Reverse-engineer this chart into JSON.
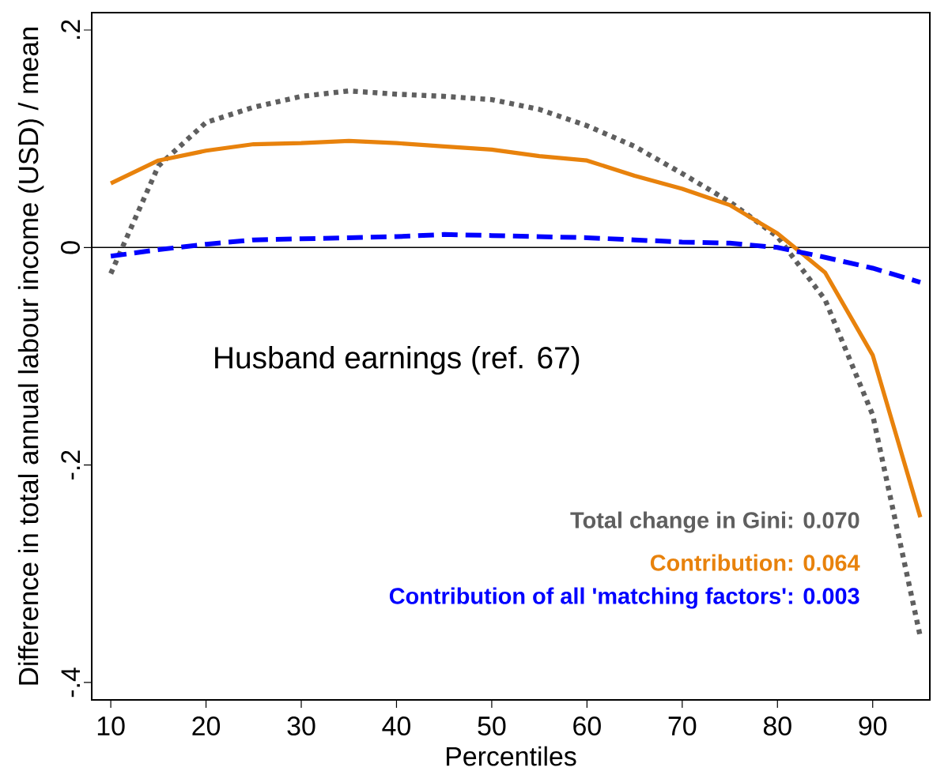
{
  "chart_data": {
    "type": "line",
    "xlabel": "Percentiles",
    "ylabel": "Difference in total annual labour income (USD) / mean",
    "x": [
      10,
      15,
      20,
      25,
      30,
      35,
      40,
      45,
      50,
      55,
      60,
      65,
      70,
      75,
      80,
      85,
      90,
      95
    ],
    "series": [
      {
        "name": "Total change in Gini:  0.070",
        "color": "#5f5f5f",
        "line_style": "dotted",
        "values": [
          -0.024,
          0.075,
          0.115,
          0.129,
          0.139,
          0.144,
          0.141,
          0.139,
          0.136,
          0.127,
          0.112,
          0.093,
          0.068,
          0.042,
          0.01,
          -0.048,
          -0.154,
          -0.358
        ]
      },
      {
        "name": "Contribution:  0.064",
        "color": "#e8820c",
        "line_style": "solid",
        "values": [
          0.059,
          0.08,
          0.089,
          0.095,
          0.096,
          0.098,
          0.096,
          0.093,
          0.09,
          0.084,
          0.08,
          0.066,
          0.054,
          0.039,
          0.013,
          -0.023,
          -0.099,
          -0.248
        ]
      },
      {
        "name": "Contribution of all 'matching factors':  0.003",
        "color": "#0000ff",
        "line_style": "dashed",
        "values": [
          -0.008,
          -0.002,
          0.003,
          0.007,
          0.008,
          0.009,
          0.01,
          0.012,
          0.011,
          0.01,
          0.009,
          0.007,
          0.005,
          0.004,
          0.0,
          -0.009,
          -0.019,
          -0.032
        ]
      }
    ],
    "xlim": [
      8,
      96
    ],
    "ylim": [
      -0.416,
      0.216
    ],
    "xticks": [
      10,
      20,
      30,
      40,
      50,
      60,
      70,
      80,
      90
    ],
    "yticks": [
      {
        "value": -0.4,
        "label": "-.4"
      },
      {
        "value": -0.2,
        "label": "-.2"
      },
      0,
      {
        "value": 0.2,
        "label": ".2"
      }
    ],
    "ref_lines": [
      {
        "axis": "y",
        "value": 0,
        "color": "#000000"
      }
    ],
    "annotations": [
      "Husband earnings (ref. 67)"
    ],
    "legend": "bottom right"
  }
}
